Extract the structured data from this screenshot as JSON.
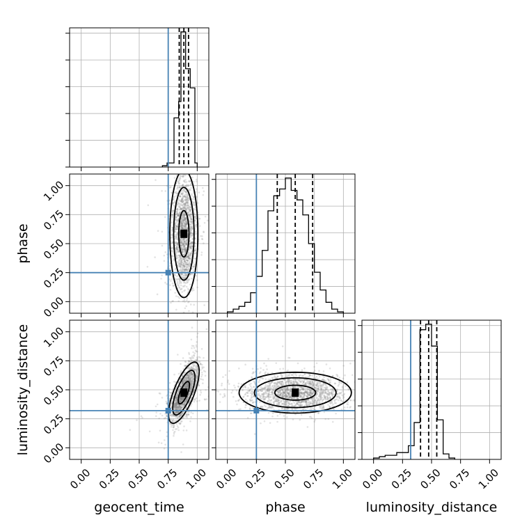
{
  "chart_data": {
    "type": "corner",
    "parameters": [
      "geocent_time",
      "phase",
      "luminosity_distance"
    ],
    "tick_values": [
      0.0,
      0.25,
      0.5,
      0.75,
      1.0
    ],
    "tick_labels": [
      "0.00",
      "0.25",
      "0.50",
      "0.75",
      "1.00"
    ],
    "xlim": [
      -0.1,
      1.1
    ],
    "ylim": [
      -0.1,
      1.1
    ],
    "grid": true,
    "truths": {
      "geocent_time": 0.75,
      "phase": 0.25,
      "luminosity_distance": 0.32
    },
    "truth_color": "#4682b4",
    "line_color": "#000000",
    "quantiles": {
      "geocent_time": [
        0.845,
        0.885,
        0.925
      ],
      "phase": [
        0.43,
        0.585,
        0.735
      ],
      "luminosity_distance": [
        0.405,
        0.475,
        0.545
      ]
    },
    "histograms": {
      "geocent_time": {
        "bin_edges": [
          0.7,
          0.74,
          0.8,
          0.84,
          0.86,
          0.9,
          0.94,
          0.98,
          1.0
        ],
        "counts": [
          0.01,
          0.03,
          0.36,
          0.48,
          0.99,
          0.72,
          0.58,
          0.03
        ]
      },
      "phase": {
        "bin_edges": [
          0.0,
          0.05,
          0.1,
          0.15,
          0.2,
          0.25,
          0.3,
          0.35,
          0.4,
          0.45,
          0.5,
          0.55,
          0.6,
          0.65,
          0.7,
          0.75,
          0.8,
          0.85,
          0.9,
          0.95,
          1.0
        ],
        "counts": [
          0.01,
          0.03,
          0.05,
          0.08,
          0.15,
          0.27,
          0.46,
          0.75,
          0.86,
          0.91,
          0.99,
          0.9,
          0.83,
          0.72,
          0.51,
          0.3,
          0.17,
          0.08,
          0.03,
          0.01
        ]
      },
      "luminosity_distance": {
        "bin_edges": [
          0.0,
          0.05,
          0.1,
          0.15,
          0.2,
          0.25,
          0.3,
          0.35,
          0.4,
          0.45,
          0.5,
          0.55,
          0.6,
          0.65,
          0.7
        ],
        "counts": [
          0.01,
          0.02,
          0.03,
          0.03,
          0.05,
          0.05,
          0.1,
          0.27,
          0.95,
          0.99,
          0.83,
          0.29,
          0.04,
          0.01
        ]
      }
    },
    "density_2d": [
      {
        "x": "geocent_time",
        "y": "phase",
        "center": [
          0.885,
          0.585
        ],
        "sigma": [
          0.055,
          0.25
        ],
        "corr": 0.0,
        "contour_mahalanobis": [
          0.8,
          1.6,
          2.2
        ]
      },
      {
        "x": "geocent_time",
        "y": "luminosity_distance",
        "center": [
          0.885,
          0.475
        ],
        "sigma": [
          0.06,
          0.12
        ],
        "corr": 0.7,
        "contour_mahalanobis": [
          0.8,
          1.6,
          2.2
        ]
      },
      {
        "x": "phase",
        "y": "luminosity_distance",
        "center": [
          0.585,
          0.475
        ],
        "sigma": [
          0.22,
          0.08
        ],
        "corr": 0.0,
        "contour_mahalanobis": [
          0.8,
          1.6,
          2.2
        ]
      }
    ]
  }
}
